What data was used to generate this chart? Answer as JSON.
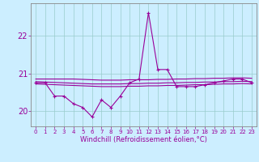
{
  "xlabel": "Windchill (Refroidissement éolien,°C)",
  "hours": [
    0,
    1,
    2,
    3,
    4,
    5,
    6,
    7,
    8,
    9,
    10,
    11,
    12,
    13,
    14,
    15,
    16,
    17,
    18,
    19,
    20,
    21,
    22,
    23
  ],
  "y_main": [
    20.75,
    20.75,
    20.4,
    20.4,
    20.2,
    20.1,
    19.85,
    20.3,
    20.1,
    20.4,
    20.75,
    20.85,
    22.6,
    21.1,
    21.1,
    20.65,
    20.65,
    20.65,
    20.7,
    20.75,
    20.8,
    20.85,
    20.85,
    20.75
  ],
  "y_flat1": [
    20.85,
    20.85,
    20.85,
    20.85,
    20.85,
    20.84,
    20.83,
    20.82,
    20.82,
    20.82,
    20.83,
    20.83,
    20.83,
    20.84,
    20.84,
    20.85,
    20.85,
    20.86,
    20.86,
    20.87,
    20.87,
    20.88,
    20.88,
    20.87
  ],
  "y_flat2": [
    20.78,
    20.77,
    20.76,
    20.75,
    20.74,
    20.73,
    20.72,
    20.72,
    20.72,
    20.72,
    20.73,
    20.73,
    20.74,
    20.74,
    20.75,
    20.75,
    20.76,
    20.76,
    20.77,
    20.77,
    20.78,
    20.78,
    20.79,
    20.78
  ],
  "y_flat3": [
    20.72,
    20.71,
    20.7,
    20.69,
    20.68,
    20.67,
    20.66,
    20.65,
    20.65,
    20.65,
    20.66,
    20.66,
    20.67,
    20.67,
    20.68,
    20.68,
    20.69,
    20.7,
    20.7,
    20.71,
    20.72,
    20.72,
    20.73,
    20.72
  ],
  "line_color": "#990099",
  "bg_color": "#cceeff",
  "grid_color": "#99cccc",
  "ylim": [
    19.6,
    22.85
  ],
  "yticks": [
    20,
    21,
    22
  ],
  "xlim": [
    -0.5,
    23.5
  ]
}
